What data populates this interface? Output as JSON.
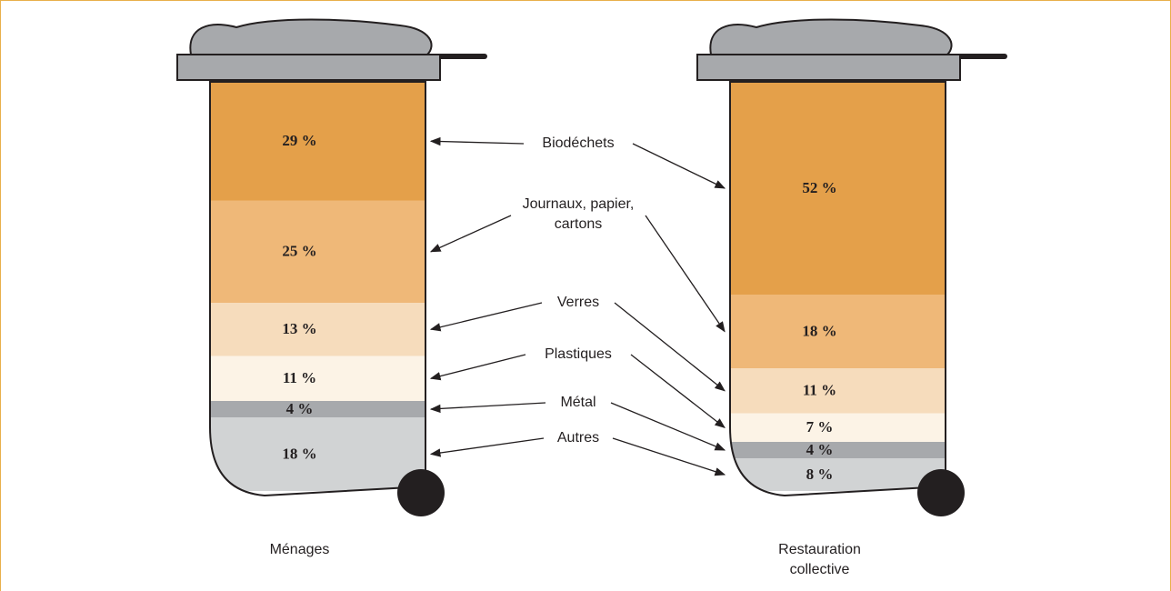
{
  "chart_data": {
    "type": "bar",
    "categories": [
      "Ménages",
      "Restauration collective"
    ],
    "series": [
      {
        "name": "Biodéchets",
        "color": "#e4a04a",
        "values": [
          29,
          52
        ],
        "value_labels": [
          "29 %",
          "52 %"
        ]
      },
      {
        "name": "Journaux, papier, cartons",
        "color": "#efb878",
        "values": [
          25,
          18
        ],
        "value_labels": [
          "25 %",
          "18 %"
        ]
      },
      {
        "name": "Verres",
        "color": "#f6dcbc",
        "values": [
          13,
          11
        ],
        "value_labels": [
          "13 %",
          "11 %"
        ]
      },
      {
        "name": "Plastiques",
        "color": "#fcf3e6",
        "values": [
          11,
          7
        ],
        "value_labels": [
          "11 %",
          "7 %"
        ]
      },
      {
        "name": "Métal",
        "color": "#a7a9ac",
        "values": [
          4,
          4
        ],
        "value_labels": [
          "4 %",
          "4 %"
        ]
      },
      {
        "name": "Autres",
        "color": "#d1d3d4",
        "values": [
          18,
          8
        ],
        "value_labels": [
          "18 %",
          "8 %"
        ]
      }
    ]
  }
}
